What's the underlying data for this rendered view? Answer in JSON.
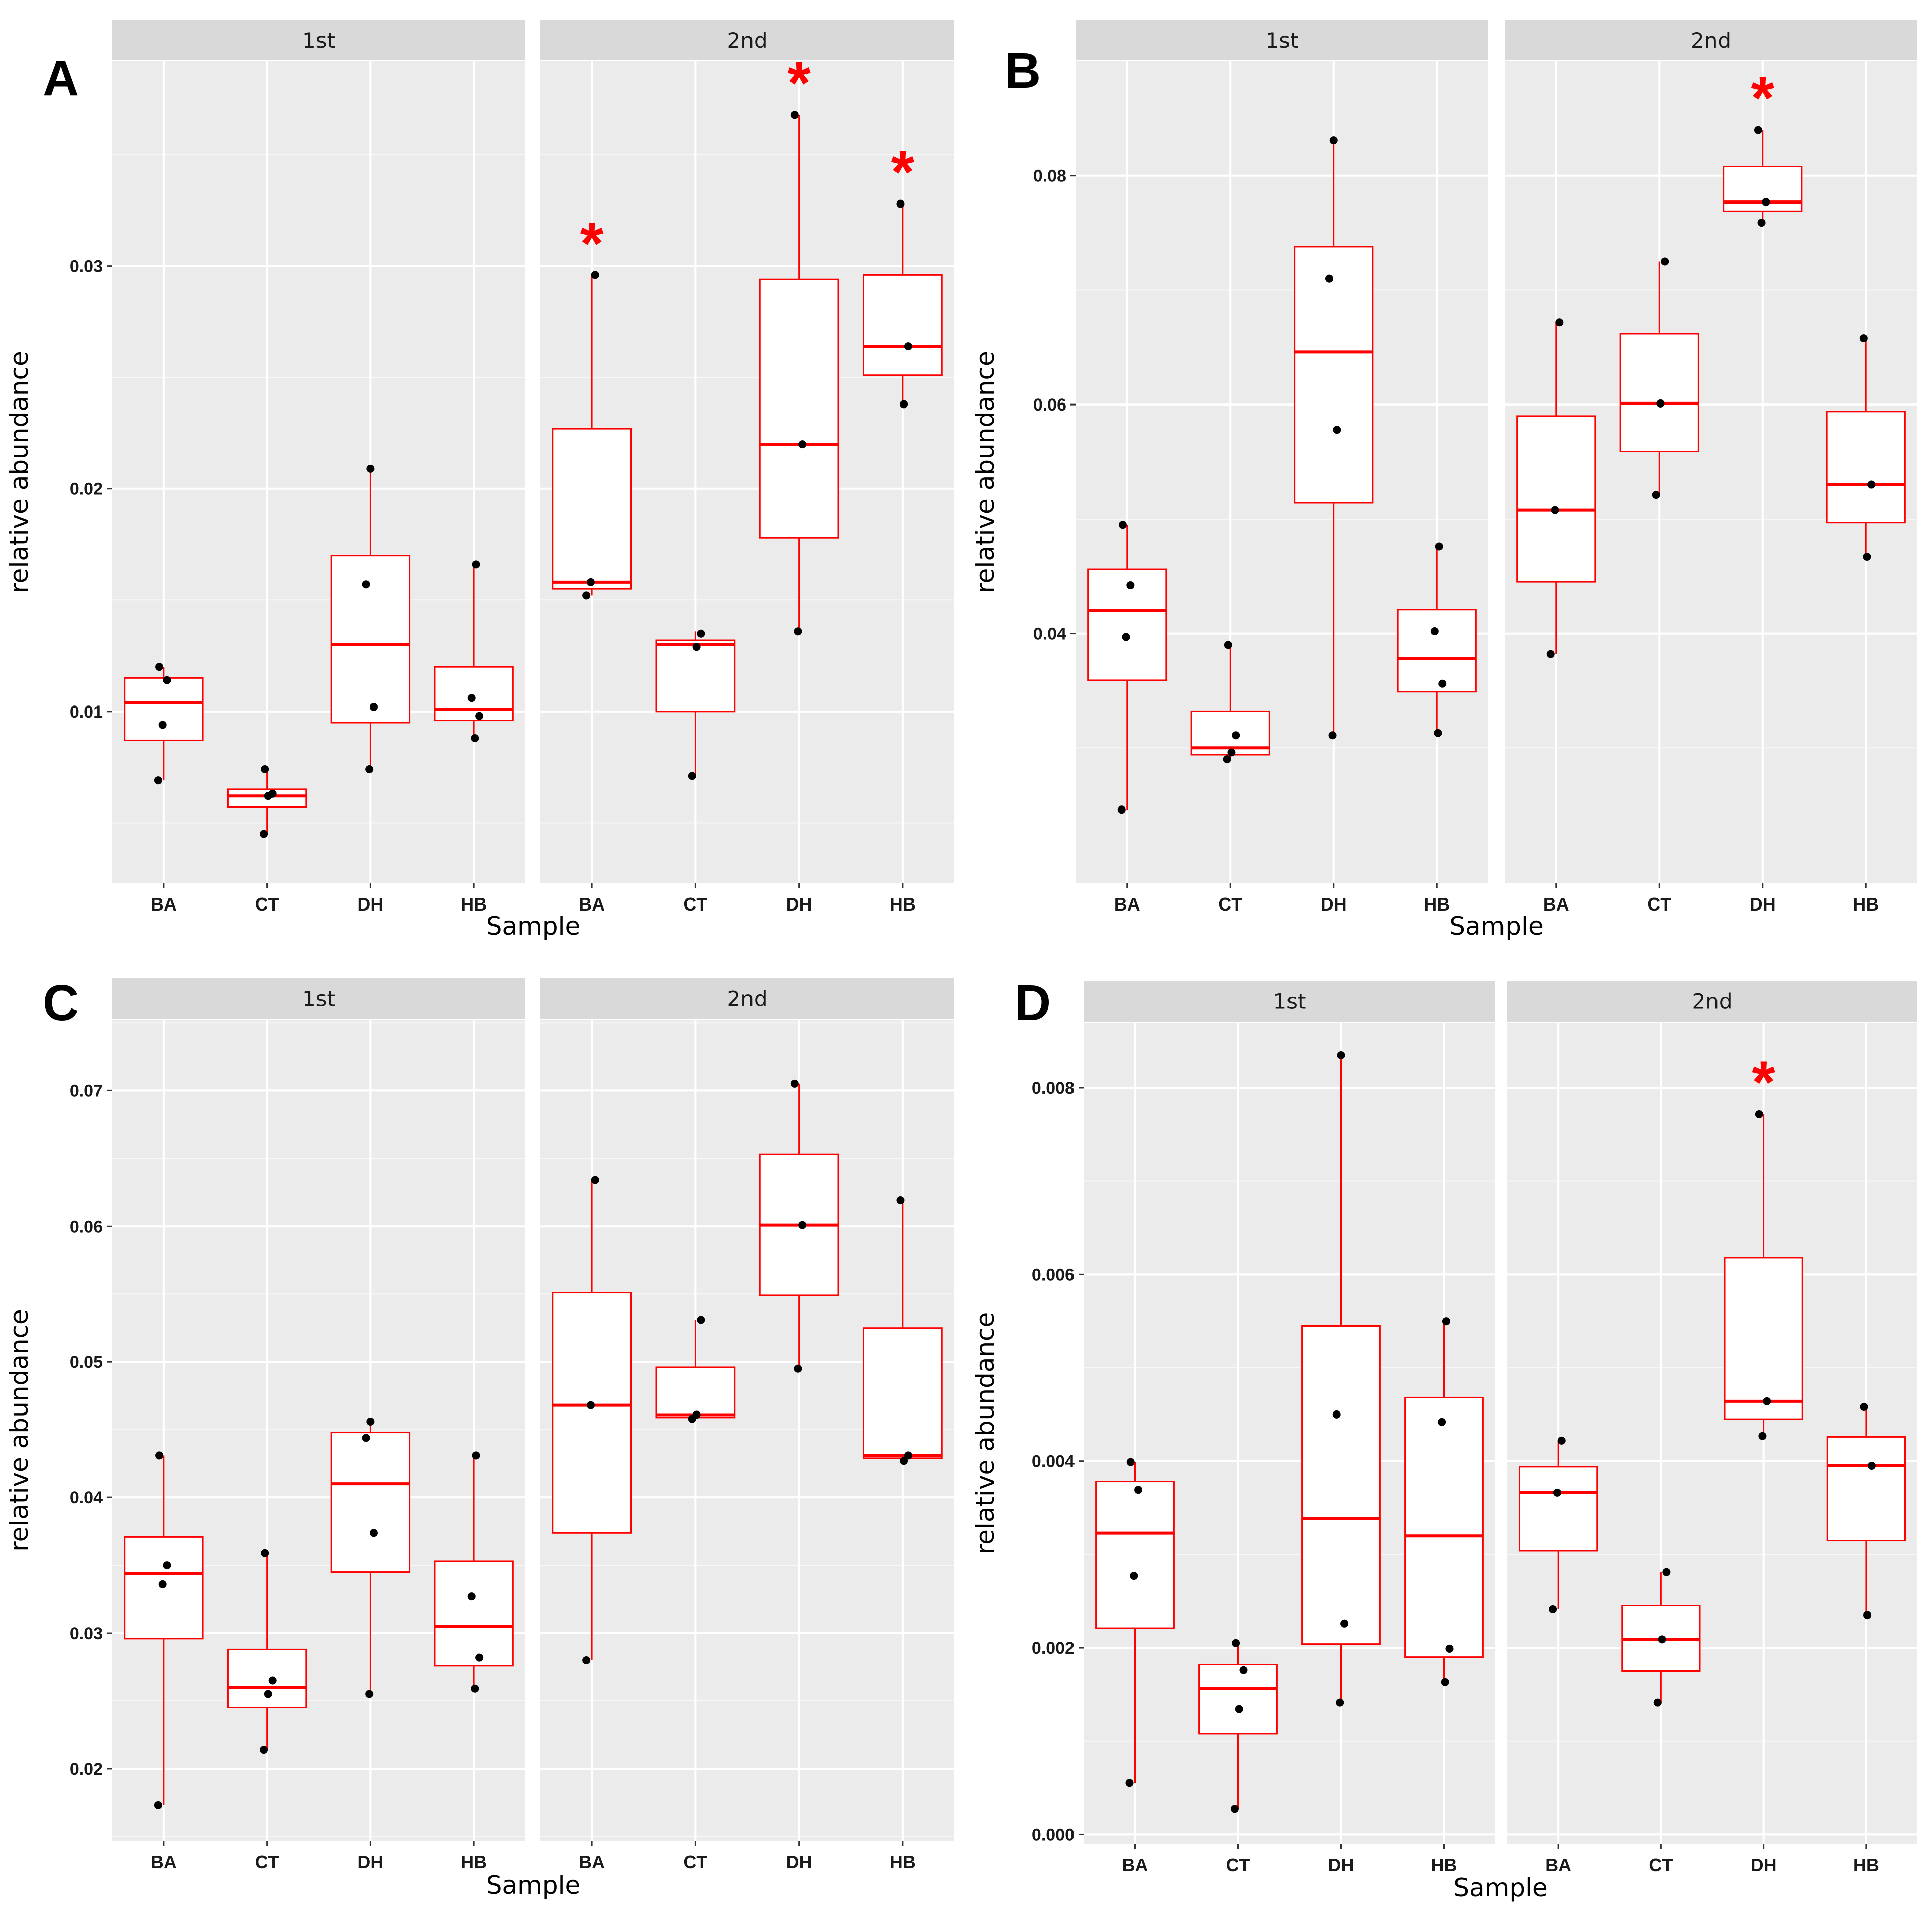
{
  "chart_data": [
    {
      "type": "box",
      "panel_label": "A",
      "ylabel": "relative abundance",
      "xlabel": "Sample",
      "yticks": [
        {
          "v": 0.01,
          "t": "0.01"
        },
        {
          "v": 0.02,
          "t": "0.02"
        },
        {
          "v": 0.03,
          "t": "0.03"
        }
      ],
      "ylim": [
        0.0023,
        0.0392
      ],
      "facets": [
        {
          "name": "1st",
          "groups": [
            {
              "name": "BA",
              "min": 0.0069,
              "q1": 0.0087,
              "median": 0.0104,
              "q3": 0.0115,
              "max": 0.012,
              "points": [
                0.0069,
                0.0094,
                0.0114,
                0.012
              ],
              "star": false
            },
            {
              "name": "CT",
              "min": 0.0045,
              "q1": 0.0057,
              "median": 0.0062,
              "q3": 0.0065,
              "max": 0.0074,
              "points": [
                0.0045,
                0.0062,
                0.0063,
                0.0074
              ],
              "star": false
            },
            {
              "name": "DH",
              "min": 0.0074,
              "q1": 0.0095,
              "median": 0.013,
              "q3": 0.017,
              "max": 0.0209,
              "points": [
                0.0074,
                0.0102,
                0.0157,
                0.0209
              ],
              "star": false
            },
            {
              "name": "HB",
              "min": 0.0088,
              "q1": 0.0096,
              "median": 0.0101,
              "q3": 0.012,
              "max": 0.0166,
              "points": [
                0.0088,
                0.0098,
                0.0106,
                0.0166
              ],
              "star": false
            }
          ]
        },
        {
          "name": "2nd",
          "groups": [
            {
              "name": "BA",
              "min": 0.0152,
              "q1": 0.0155,
              "median": 0.0158,
              "q3": 0.0227,
              "max": 0.0296,
              "points": [
                0.0152,
                0.0158,
                0.0296
              ],
              "star": true
            },
            {
              "name": "CT",
              "min": 0.0071,
              "q1": 0.01,
              "median": 0.013,
              "q3": 0.0132,
              "max": 0.0136,
              "points": [
                0.0071,
                0.0129,
                0.0135
              ],
              "star": false
            },
            {
              "name": "DH",
              "min": 0.0136,
              "q1": 0.0178,
              "median": 0.022,
              "q3": 0.0294,
              "max": 0.0368,
              "points": [
                0.0136,
                0.022,
                0.0368
              ],
              "star": true
            },
            {
              "name": "HB",
              "min": 0.0238,
              "q1": 0.0251,
              "median": 0.0264,
              "q3": 0.0296,
              "max": 0.0328,
              "points": [
                0.0238,
                0.0264,
                0.0328
              ],
              "star": true
            }
          ]
        }
      ]
    },
    {
      "type": "box",
      "panel_label": "B",
      "ylabel": "relative abundance",
      "xlabel": "Sample",
      "yticks": [
        {
          "v": 0.04,
          "t": "0.04"
        },
        {
          "v": 0.06,
          "t": "0.06"
        },
        {
          "v": 0.08,
          "t": "0.08"
        }
      ],
      "ylim": [
        0.0182,
        0.09
      ],
      "facets": [
        {
          "name": "1st",
          "groups": [
            {
              "name": "BA",
              "min": 0.0246,
              "q1": 0.0359,
              "median": 0.042,
              "q3": 0.0456,
              "max": 0.0495,
              "points": [
                0.0246,
                0.0397,
                0.0442,
                0.0495
              ],
              "star": false
            },
            {
              "name": "CT",
              "min": 0.029,
              "q1": 0.0294,
              "median": 0.03,
              "q3": 0.0332,
              "max": 0.039,
              "points": [
                0.029,
                0.0296,
                0.0311,
                0.039
              ],
              "star": false
            },
            {
              "name": "DH",
              "min": 0.0311,
              "q1": 0.0514,
              "median": 0.0646,
              "q3": 0.0738,
              "max": 0.0831,
              "points": [
                0.0311,
                0.0578,
                0.071,
                0.0831
              ],
              "star": false
            },
            {
              "name": "HB",
              "min": 0.0313,
              "q1": 0.0349,
              "median": 0.0378,
              "q3": 0.0421,
              "max": 0.0476,
              "points": [
                0.0313,
                0.0356,
                0.0402,
                0.0476
              ],
              "star": false
            }
          ]
        },
        {
          "name": "2nd",
          "groups": [
            {
              "name": "BA",
              "min": 0.0382,
              "q1": 0.0445,
              "median": 0.0508,
              "q3": 0.059,
              "max": 0.0672,
              "points": [
                0.0382,
                0.0508,
                0.0672
              ],
              "star": false
            },
            {
              "name": "CT",
              "min": 0.0521,
              "q1": 0.0559,
              "median": 0.0601,
              "q3": 0.0662,
              "max": 0.0725,
              "points": [
                0.0521,
                0.0601,
                0.0725
              ],
              "star": false
            },
            {
              "name": "DH",
              "min": 0.0759,
              "q1": 0.0769,
              "median": 0.0777,
              "q3": 0.0808,
              "max": 0.084,
              "points": [
                0.0759,
                0.0777,
                0.084
              ],
              "star": true
            },
            {
              "name": "HB",
              "min": 0.0467,
              "q1": 0.0497,
              "median": 0.053,
              "q3": 0.0594,
              "max": 0.0658,
              "points": [
                0.0467,
                0.053,
                0.0658
              ],
              "star": false
            }
          ]
        }
      ]
    },
    {
      "type": "box",
      "panel_label": "C",
      "ylabel": "relative abundance",
      "xlabel": "Sample",
      "yticks": [
        {
          "v": 0.02,
          "t": "0.02"
        },
        {
          "v": 0.03,
          "t": "0.03"
        },
        {
          "v": 0.04,
          "t": "0.04"
        },
        {
          "v": 0.05,
          "t": "0.05"
        },
        {
          "v": 0.06,
          "t": "0.06"
        },
        {
          "v": 0.07,
          "t": "0.07"
        }
      ],
      "ylim": [
        0.0147,
        0.0752
      ],
      "facets": [
        {
          "name": "1st",
          "groups": [
            {
              "name": "BA",
              "min": 0.0173,
              "q1": 0.0296,
              "median": 0.0344,
              "q3": 0.0371,
              "max": 0.0431,
              "points": [
                0.0173,
                0.0336,
                0.035,
                0.0431
              ],
              "star": false
            },
            {
              "name": "CT",
              "min": 0.0214,
              "q1": 0.0245,
              "median": 0.026,
              "q3": 0.0288,
              "max": 0.0359,
              "points": [
                0.0214,
                0.0255,
                0.0265,
                0.0359
              ],
              "star": false
            },
            {
              "name": "DH",
              "min": 0.0255,
              "q1": 0.0345,
              "median": 0.041,
              "q3": 0.0448,
              "max": 0.0456,
              "points": [
                0.0255,
                0.0374,
                0.0444,
                0.0456
              ],
              "star": false
            },
            {
              "name": "HB",
              "min": 0.0259,
              "q1": 0.0276,
              "median": 0.0305,
              "q3": 0.0353,
              "max": 0.0431,
              "points": [
                0.0259,
                0.0282,
                0.0327,
                0.0431
              ],
              "star": false
            }
          ]
        },
        {
          "name": "2nd",
          "groups": [
            {
              "name": "BA",
              "min": 0.028,
              "q1": 0.0374,
              "median": 0.0468,
              "q3": 0.0551,
              "max": 0.0634,
              "points": [
                0.028,
                0.0468,
                0.0634
              ],
              "star": false
            },
            {
              "name": "CT",
              "min": 0.0458,
              "q1": 0.0459,
              "median": 0.0461,
              "q3": 0.0496,
              "max": 0.0531,
              "points": [
                0.0458,
                0.0461,
                0.0531
              ],
              "star": false
            },
            {
              "name": "DH",
              "min": 0.0495,
              "q1": 0.0549,
              "median": 0.0601,
              "q3": 0.0653,
              "max": 0.0705,
              "points": [
                0.0495,
                0.0601,
                0.0705
              ],
              "star": false
            },
            {
              "name": "HB",
              "min": 0.0427,
              "q1": 0.0429,
              "median": 0.0431,
              "q3": 0.0525,
              "max": 0.0619,
              "points": [
                0.0427,
                0.0431,
                0.0619
              ],
              "star": false
            }
          ]
        }
      ]
    },
    {
      "type": "box",
      "panel_label": "D",
      "ylabel": "relative abundance",
      "xlabel": "Sample",
      "yticks": [
        {
          "v": 0.0,
          "t": "0.000"
        },
        {
          "v": 0.002,
          "t": "0.002"
        },
        {
          "v": 0.004,
          "t": "0.004"
        },
        {
          "v": 0.006,
          "t": "0.006"
        },
        {
          "v": 0.008,
          "t": "0.008"
        }
      ],
      "ylim": [
        -0.0001,
        0.0087
      ],
      "facets": [
        {
          "name": "1st",
          "groups": [
            {
              "name": "BA",
              "min": 0.00055,
              "q1": 0.00221,
              "median": 0.00323,
              "q3": 0.00378,
              "max": 0.00399,
              "points": [
                0.00055,
                0.00277,
                0.00369,
                0.00399
              ],
              "star": false
            },
            {
              "name": "CT",
              "min": 0.00027,
              "q1": 0.00108,
              "median": 0.00156,
              "q3": 0.00182,
              "max": 0.00205,
              "points": [
                0.00027,
                0.00134,
                0.00176,
                0.00205
              ],
              "star": false
            },
            {
              "name": "DH",
              "min": 0.00141,
              "q1": 0.00204,
              "median": 0.00339,
              "q3": 0.00545,
              "max": 0.00835,
              "points": [
                0.00141,
                0.00226,
                0.0045,
                0.00835
              ],
              "star": false
            },
            {
              "name": "HB",
              "min": 0.00163,
              "q1": 0.0019,
              "median": 0.0032,
              "q3": 0.00468,
              "max": 0.0055,
              "points": [
                0.00163,
                0.00199,
                0.00442,
                0.0055
              ],
              "star": false
            }
          ]
        },
        {
          "name": "2nd",
          "groups": [
            {
              "name": "BA",
              "min": 0.00241,
              "q1": 0.00304,
              "median": 0.00366,
              "q3": 0.00394,
              "max": 0.00422,
              "points": [
                0.00241,
                0.00366,
                0.00422
              ],
              "star": false
            },
            {
              "name": "CT",
              "min": 0.00141,
              "q1": 0.00175,
              "median": 0.00209,
              "q3": 0.00245,
              "max": 0.00281,
              "points": [
                0.00141,
                0.00209,
                0.00281
              ],
              "star": false
            },
            {
              "name": "DH",
              "min": 0.00427,
              "q1": 0.00445,
              "median": 0.00464,
              "q3": 0.00618,
              "max": 0.00772,
              "points": [
                0.00427,
                0.00464,
                0.00772
              ],
              "star": true
            },
            {
              "name": "HB",
              "min": 0.00235,
              "q1": 0.00315,
              "median": 0.00395,
              "q3": 0.00426,
              "max": 0.00458,
              "points": [
                0.00235,
                0.00395,
                0.00458
              ],
              "star": false
            }
          ]
        }
      ]
    }
  ]
}
